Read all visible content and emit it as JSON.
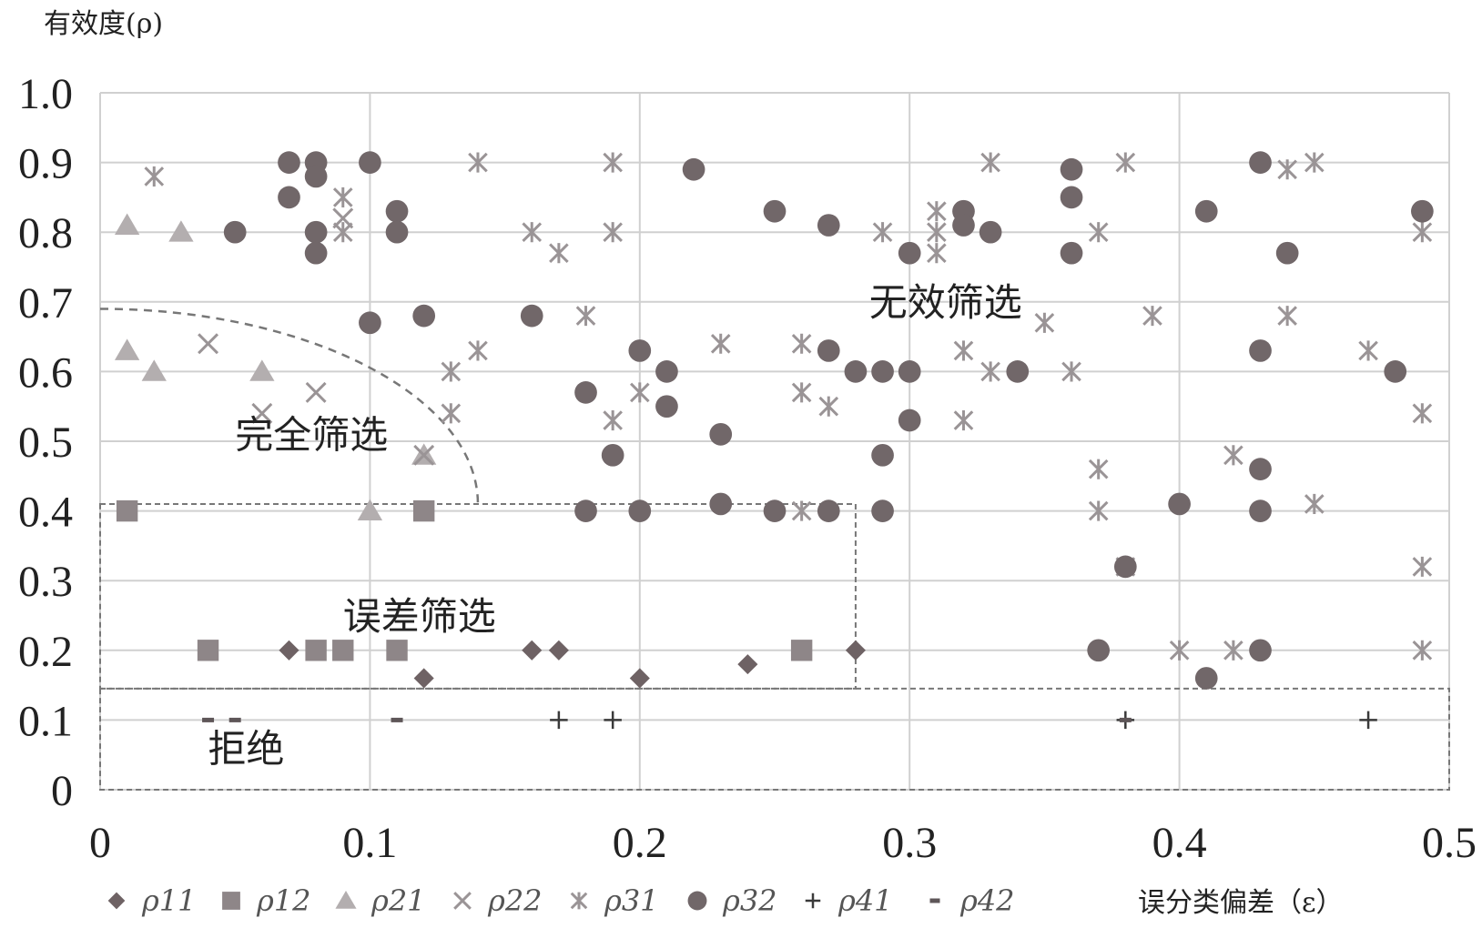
{
  "chart_data": {
    "type": "scatter",
    "ylabel": "有效度(ρ)",
    "xlabel": "误分类偏差（ε）",
    "xlim": [
      0,
      0.5
    ],
    "ylim": [
      0,
      1.0
    ],
    "x_ticks": [
      "0",
      "0.1",
      "0.2",
      "0.3",
      "0.4",
      "0.5"
    ],
    "y_ticks": [
      "0",
      "0.1",
      "0.2",
      "0.3",
      "0.4",
      "0.5",
      "0.6",
      "0.7",
      "0.8",
      "0.9",
      "1.0"
    ],
    "grid": true,
    "legend_position": "bottom",
    "regions": [
      {
        "label": "无效筛选",
        "x": 0.285,
        "y": 0.68
      },
      {
        "label": "完全筛选",
        "x": 0.05,
        "y": 0.49
      },
      {
        "label": "误差筛选",
        "x": 0.09,
        "y": 0.23
      },
      {
        "label": "拒绝",
        "x": 0.04,
        "y": 0.04
      }
    ],
    "boundaries": {
      "curve": {
        "x0": 0.0,
        "y0": 0.69,
        "x1": 0.14,
        "y1": 0.41
      },
      "error_box": {
        "x1": 0.28,
        "y_top": 0.41,
        "y_bottom": 0.145
      },
      "reject_box": {
        "x1": 0.5,
        "y_top": 0.145,
        "y_bottom": 0.0
      }
    },
    "series": [
      {
        "name": "ρ11",
        "marker": "diamond",
        "color": "#6e6264",
        "points": [
          [
            0.07,
            0.2
          ],
          [
            0.12,
            0.16
          ],
          [
            0.16,
            0.2
          ],
          [
            0.17,
            0.2
          ],
          [
            0.2,
            0.16
          ],
          [
            0.24,
            0.18
          ],
          [
            0.28,
            0.2
          ]
        ]
      },
      {
        "name": "ρ12",
        "marker": "square",
        "color": "#8e8688",
        "points": [
          [
            0.01,
            0.4
          ],
          [
            0.04,
            0.2
          ],
          [
            0.08,
            0.2
          ],
          [
            0.09,
            0.2
          ],
          [
            0.11,
            0.2
          ],
          [
            0.12,
            0.4
          ],
          [
            0.26,
            0.2
          ]
        ]
      },
      {
        "name": "ρ21",
        "marker": "triangle",
        "color": "#b3aeaf",
        "points": [
          [
            0.01,
            0.81
          ],
          [
            0.03,
            0.8
          ],
          [
            0.01,
            0.63
          ],
          [
            0.02,
            0.6
          ],
          [
            0.06,
            0.6
          ],
          [
            0.1,
            0.4
          ],
          [
            0.12,
            0.48
          ]
        ]
      },
      {
        "name": "ρ22",
        "marker": "x",
        "color": "#9a9496",
        "points": [
          [
            0.04,
            0.64
          ],
          [
            0.06,
            0.54
          ],
          [
            0.08,
            0.57
          ],
          [
            0.09,
            0.82
          ],
          [
            0.12,
            0.48
          ]
        ]
      },
      {
        "name": "ρ31",
        "marker": "asterisk",
        "color": "#9a9496",
        "points": [
          [
            0.02,
            0.88
          ],
          [
            0.09,
            0.85
          ],
          [
            0.09,
            0.8
          ],
          [
            0.14,
            0.9
          ],
          [
            0.13,
            0.6
          ],
          [
            0.13,
            0.54
          ],
          [
            0.14,
            0.63
          ],
          [
            0.16,
            0.8
          ],
          [
            0.17,
            0.77
          ],
          [
            0.18,
            0.68
          ],
          [
            0.19,
            0.9
          ],
          [
            0.19,
            0.8
          ],
          [
            0.19,
            0.53
          ],
          [
            0.2,
            0.57
          ],
          [
            0.23,
            0.64
          ],
          [
            0.26,
            0.64
          ],
          [
            0.26,
            0.57
          ],
          [
            0.26,
            0.4
          ],
          [
            0.27,
            0.55
          ],
          [
            0.29,
            0.8
          ],
          [
            0.31,
            0.83
          ],
          [
            0.31,
            0.8
          ],
          [
            0.31,
            0.77
          ],
          [
            0.32,
            0.63
          ],
          [
            0.32,
            0.53
          ],
          [
            0.33,
            0.9
          ],
          [
            0.33,
            0.6
          ],
          [
            0.35,
            0.67
          ],
          [
            0.36,
            0.6
          ],
          [
            0.37,
            0.8
          ],
          [
            0.37,
            0.46
          ],
          [
            0.37,
            0.4
          ],
          [
            0.38,
            0.9
          ],
          [
            0.38,
            0.32
          ],
          [
            0.39,
            0.68
          ],
          [
            0.4,
            0.2
          ],
          [
            0.42,
            0.48
          ],
          [
            0.42,
            0.2
          ],
          [
            0.44,
            0.89
          ],
          [
            0.44,
            0.68
          ],
          [
            0.45,
            0.9
          ],
          [
            0.45,
            0.41
          ],
          [
            0.47,
            0.63
          ],
          [
            0.49,
            0.8
          ],
          [
            0.49,
            0.54
          ],
          [
            0.49,
            0.32
          ],
          [
            0.49,
            0.2
          ]
        ]
      },
      {
        "name": "ρ32",
        "marker": "circle",
        "color": "#716769",
        "points": [
          [
            0.05,
            0.8
          ],
          [
            0.07,
            0.9
          ],
          [
            0.07,
            0.85
          ],
          [
            0.08,
            0.9
          ],
          [
            0.08,
            0.88
          ],
          [
            0.08,
            0.8
          ],
          [
            0.08,
            0.77
          ],
          [
            0.1,
            0.9
          ],
          [
            0.1,
            0.67
          ],
          [
            0.11,
            0.83
          ],
          [
            0.11,
            0.8
          ],
          [
            0.12,
            0.68
          ],
          [
            0.16,
            0.68
          ],
          [
            0.18,
            0.57
          ],
          [
            0.18,
            0.4
          ],
          [
            0.19,
            0.48
          ],
          [
            0.2,
            0.63
          ],
          [
            0.2,
            0.4
          ],
          [
            0.21,
            0.6
          ],
          [
            0.21,
            0.55
          ],
          [
            0.22,
            0.89
          ],
          [
            0.23,
            0.51
          ],
          [
            0.23,
            0.41
          ],
          [
            0.25,
            0.83
          ],
          [
            0.25,
            0.4
          ],
          [
            0.27,
            0.81
          ],
          [
            0.27,
            0.63
          ],
          [
            0.27,
            0.4
          ],
          [
            0.28,
            0.6
          ],
          [
            0.29,
            0.6
          ],
          [
            0.29,
            0.48
          ],
          [
            0.29,
            0.4
          ],
          [
            0.3,
            0.77
          ],
          [
            0.3,
            0.6
          ],
          [
            0.3,
            0.53
          ],
          [
            0.32,
            0.83
          ],
          [
            0.32,
            0.81
          ],
          [
            0.33,
            0.8
          ],
          [
            0.34,
            0.6
          ],
          [
            0.36,
            0.89
          ],
          [
            0.36,
            0.85
          ],
          [
            0.36,
            0.77
          ],
          [
            0.37,
            0.2
          ],
          [
            0.38,
            0.32
          ],
          [
            0.4,
            0.41
          ],
          [
            0.41,
            0.83
          ],
          [
            0.41,
            0.16
          ],
          [
            0.43,
            0.9
          ],
          [
            0.43,
            0.63
          ],
          [
            0.43,
            0.46
          ],
          [
            0.43,
            0.4
          ],
          [
            0.43,
            0.2
          ],
          [
            0.44,
            0.77
          ],
          [
            0.48,
            0.6
          ],
          [
            0.49,
            0.83
          ]
        ]
      },
      {
        "name": "ρ41",
        "marker": "plus",
        "color": "#3a3a3a",
        "points": [
          [
            0.17,
            0.1
          ],
          [
            0.19,
            0.1
          ],
          [
            0.38,
            0.1
          ],
          [
            0.47,
            0.1
          ]
        ]
      },
      {
        "name": "ρ42",
        "marker": "dash",
        "color": "#5e5658",
        "points": [
          [
            0.04,
            0.1
          ],
          [
            0.05,
            0.1
          ],
          [
            0.11,
            0.1
          ],
          [
            0.38,
            0.1
          ]
        ]
      }
    ]
  }
}
